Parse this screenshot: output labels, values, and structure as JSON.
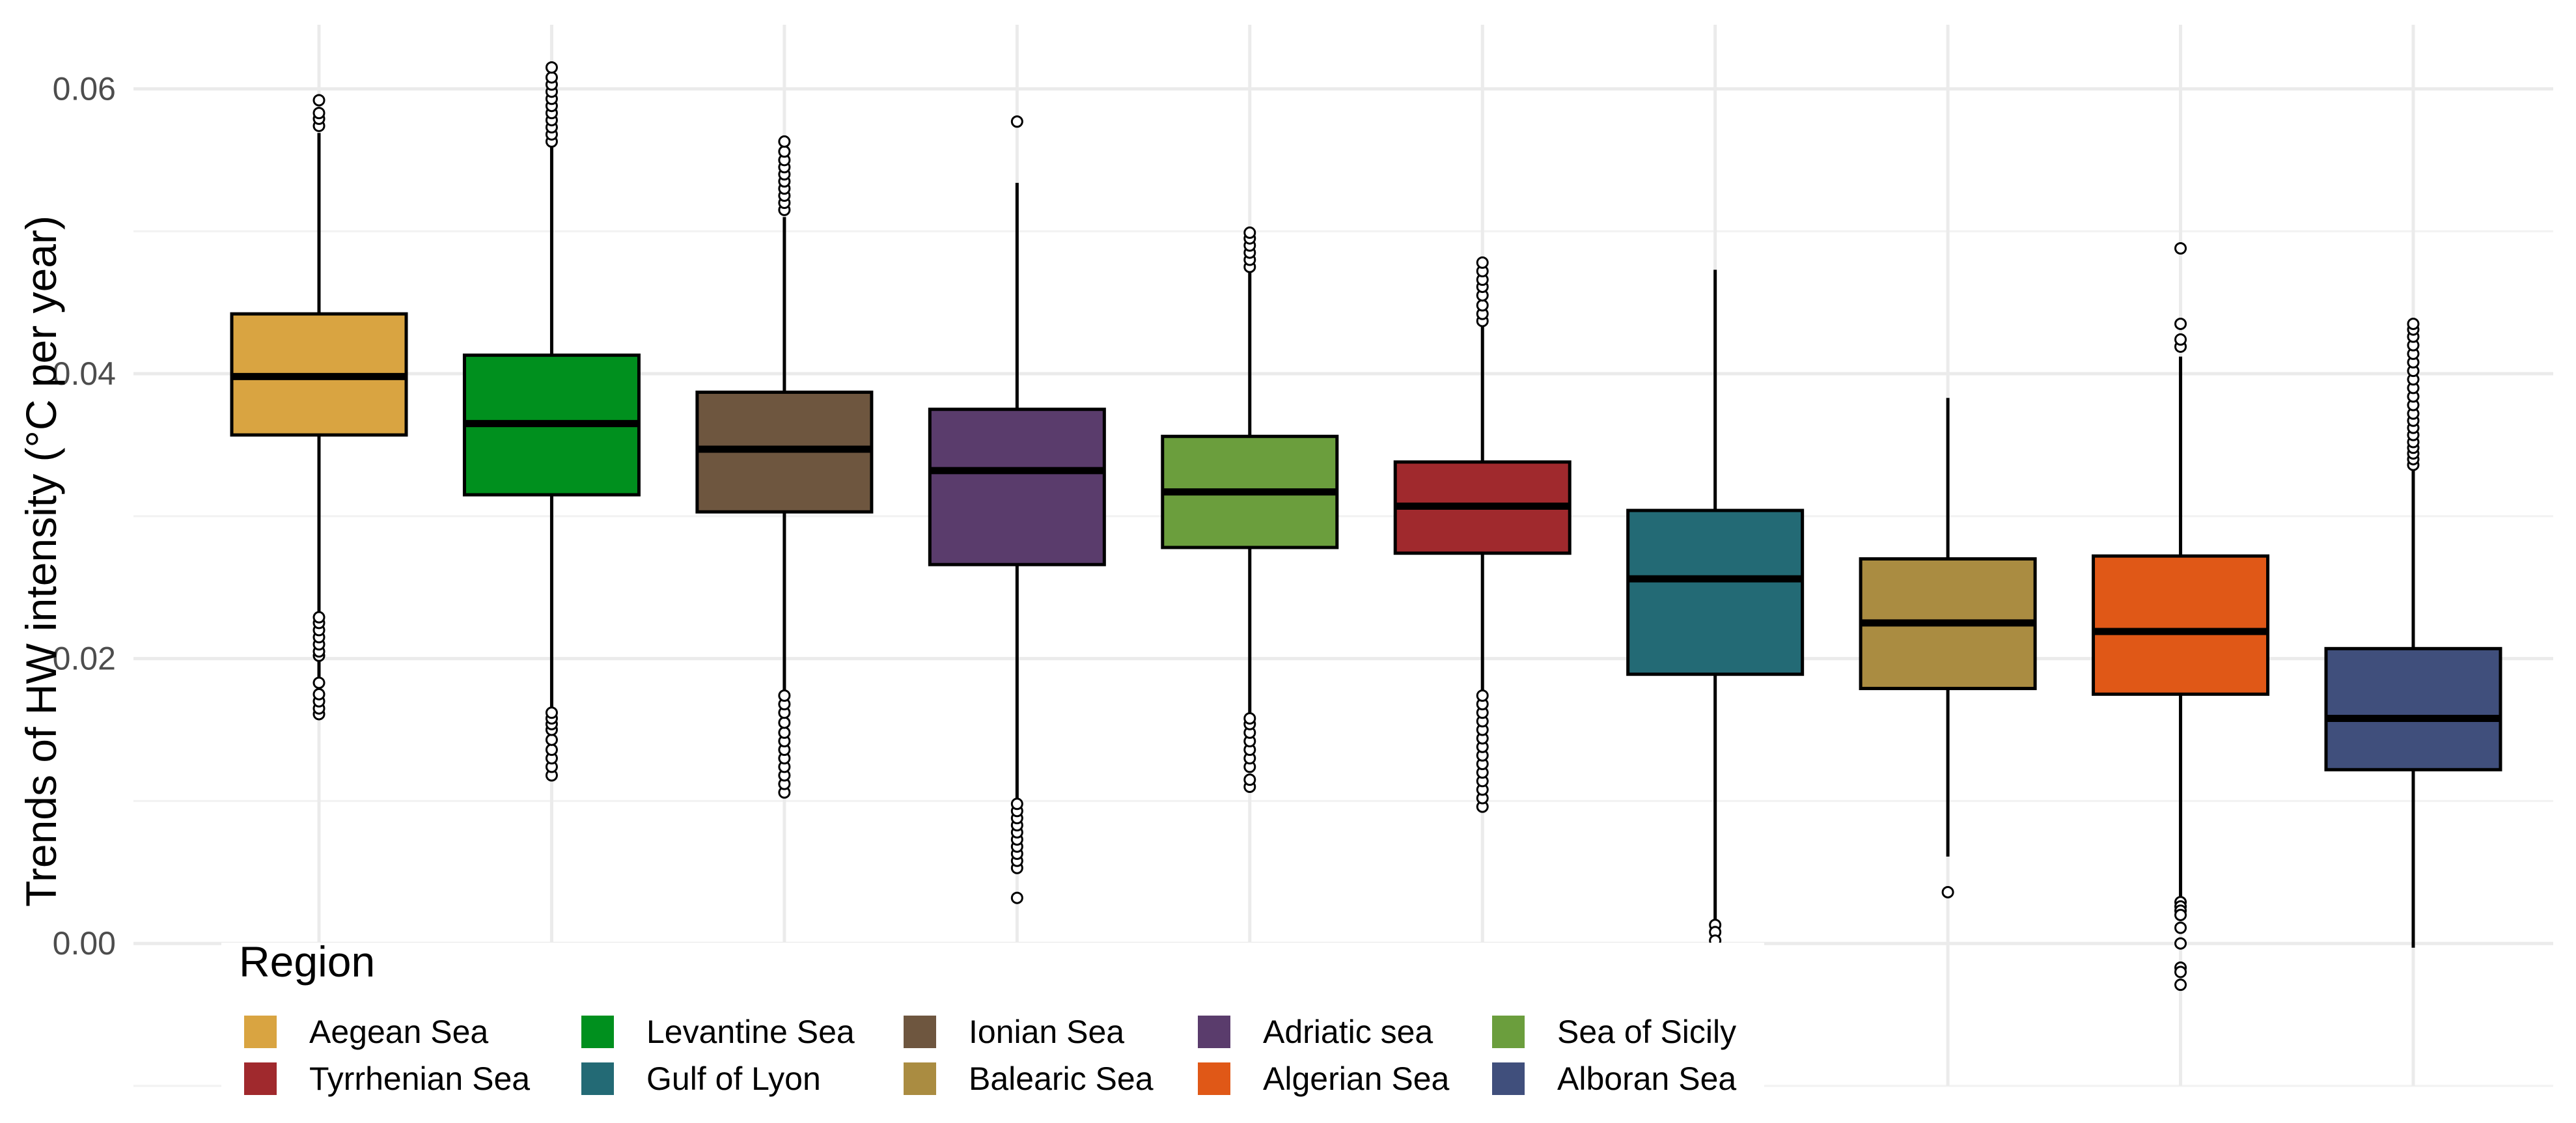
{
  "chart_data": {
    "type": "boxplot",
    "ylabel": "Trends of HW intensity (°C per year)",
    "ylim": [
      -0.01,
      0.0645
    ],
    "yticks": [
      0.0,
      0.02,
      0.04,
      0.06
    ],
    "ytick_labels": [
      "0.00",
      "0.02",
      "0.04",
      "0.06"
    ],
    "grid": true,
    "legend": {
      "title": "Region",
      "position": "bottom-left",
      "columns": 5
    },
    "series": [
      {
        "name": "Aegean Sea",
        "color": "#D9A441",
        "min": 0.0166,
        "q1": 0.0357,
        "median": 0.0398,
        "q3": 0.0442,
        "max": 0.0569,
        "outliers": [
          0.0574,
          0.0579,
          0.0583,
          0.0592,
          0.0161,
          0.0165,
          0.017,
          0.0175,
          0.0183,
          0.0202,
          0.0205,
          0.021,
          0.0215,
          0.022,
          0.0225,
          0.0229
        ]
      },
      {
        "name": "Levantine Sea",
        "color": "#00901E",
        "min": 0.0121,
        "q1": 0.0315,
        "median": 0.0365,
        "q3": 0.0413,
        "max": 0.056,
        "outliers": [
          0.0563,
          0.0568,
          0.0573,
          0.0578,
          0.0583,
          0.0588,
          0.0593,
          0.0598,
          0.0603,
          0.0608,
          0.0615,
          0.0118,
          0.0124,
          0.013,
          0.0136,
          0.0143,
          0.015,
          0.0154,
          0.0158,
          0.0162
        ]
      },
      {
        "name": "Ionian Sea",
        "color": "#6E563F",
        "min": 0.0109,
        "q1": 0.0303,
        "median": 0.0347,
        "q3": 0.0387,
        "max": 0.051,
        "outliers": [
          0.0515,
          0.052,
          0.0525,
          0.053,
          0.0535,
          0.054,
          0.0545,
          0.055,
          0.0556,
          0.0563,
          0.0106,
          0.0112,
          0.0118,
          0.0124,
          0.013,
          0.0136,
          0.0142,
          0.0148,
          0.0155,
          0.0162,
          0.0168,
          0.0174
        ]
      },
      {
        "name": "Adriatic sea",
        "color": "#5A3C6C",
        "min": 0.0102,
        "q1": 0.0266,
        "median": 0.0332,
        "q3": 0.0375,
        "max": 0.0534,
        "outliers": [
          0.0577,
          0.0032,
          0.0053,
          0.0058,
          0.0063,
          0.0068,
          0.0073,
          0.0078,
          0.0083,
          0.0088,
          0.0093,
          0.0098
        ]
      },
      {
        "name": "Sea of Sicily",
        "color": "#6B9E3D",
        "min": 0.016,
        "q1": 0.0278,
        "median": 0.0317,
        "q3": 0.0356,
        "max": 0.0471,
        "outliers": [
          0.0475,
          0.048,
          0.0485,
          0.049,
          0.0495,
          0.0499,
          0.011,
          0.0115,
          0.0124,
          0.013,
          0.0136,
          0.0142,
          0.0148,
          0.0154,
          0.0158
        ]
      },
      {
        "name": "Tyrrhenian Sea",
        "color": "#A0292D",
        "min": 0.0175,
        "q1": 0.0274,
        "median": 0.0307,
        "q3": 0.0338,
        "max": 0.0433,
        "outliers": [
          0.0437,
          0.0442,
          0.0448,
          0.0455,
          0.0461,
          0.0466,
          0.0472,
          0.0478,
          0.0096,
          0.0102,
          0.0108,
          0.0114,
          0.012,
          0.0126,
          0.0132,
          0.0138,
          0.0144,
          0.015,
          0.0156,
          0.0162,
          0.0168,
          0.0174
        ]
      },
      {
        "name": "Gulf of Lyon",
        "color": "#236A75",
        "min": 0.0016,
        "q1": 0.0189,
        "median": 0.0256,
        "q3": 0.0304,
        "max": 0.0473,
        "outliers": [
          0.0013,
          0.0008,
          0.0002,
          -0.0004,
          -0.001,
          -0.0016,
          -0.0022,
          -0.0028,
          -0.0034,
          -0.004,
          -0.0046,
          -0.0052,
          -0.0058,
          -0.0064
        ]
      },
      {
        "name": "Balearic Sea",
        "color": "#AA8C41",
        "min": 0.0061,
        "q1": 0.0179,
        "median": 0.0225,
        "q3": 0.027,
        "max": 0.0383,
        "outliers": [
          0.0036
        ]
      },
      {
        "name": "Algerian Sea",
        "color": "#E05817",
        "min": 0.0033,
        "q1": 0.0175,
        "median": 0.0219,
        "q3": 0.0272,
        "max": 0.0412,
        "outliers": [
          0.0419,
          0.0424,
          0.0435,
          0.0488,
          0.0029,
          0.0026,
          0.0023,
          0.002,
          0.0011,
          0.0,
          -0.0017,
          -0.002,
          -0.0029
        ]
      },
      {
        "name": "Alboran Sea",
        "color": "#404F7C",
        "min": -0.0003,
        "q1": 0.0122,
        "median": 0.0158,
        "q3": 0.0207,
        "max": 0.0333,
        "outliers": [
          0.0336,
          0.034,
          0.0344,
          0.0348,
          0.0352,
          0.0357,
          0.0362,
          0.0367,
          0.0372,
          0.0378,
          0.0384,
          0.039,
          0.0396,
          0.0402,
          0.0408,
          0.0414,
          0.042,
          0.0426,
          0.0431,
          0.0435
        ]
      }
    ]
  }
}
